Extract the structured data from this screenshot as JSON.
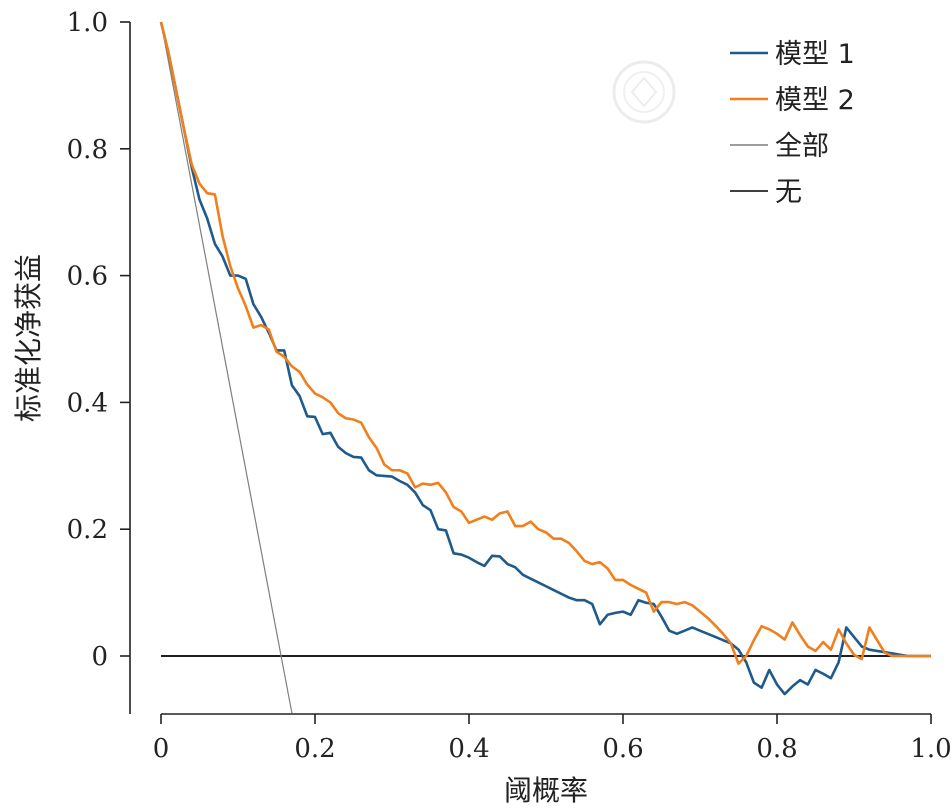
{
  "chart_data": {
    "type": "line",
    "xlabel": "阈概率",
    "ylabel": "标准化净获益",
    "xlim": [
      0,
      1.0
    ],
    "ylim": [
      -0.09,
      1.0
    ],
    "x_ticks": [
      "0",
      "0.2",
      "0.4",
      "0.6",
      "0.8",
      "1.0"
    ],
    "x_tick_values": [
      0,
      0.2,
      0.4,
      0.6,
      0.8,
      1.0
    ],
    "y_ticks": [
      "0",
      "0.2",
      "0.4",
      "0.6",
      "0.8",
      "1.0"
    ],
    "y_tick_values": [
      0,
      0.2,
      0.4,
      0.6,
      0.8,
      1.0
    ],
    "grid": false,
    "legend_position": "top-right",
    "series": [
      {
        "name": "模型 1",
        "color": "#1f5a8c",
        "x": [
          0,
          0.01,
          0.02,
          0.03,
          0.04,
          0.05,
          0.06,
          0.07,
          0.08,
          0.09,
          0.1,
          0.11,
          0.12,
          0.13,
          0.14,
          0.15,
          0.16,
          0.17,
          0.18,
          0.19,
          0.2,
          0.21,
          0.22,
          0.23,
          0.24,
          0.25,
          0.26,
          0.27,
          0.28,
          0.29,
          0.3,
          0.31,
          0.32,
          0.33,
          0.34,
          0.35,
          0.36,
          0.37,
          0.38,
          0.39,
          0.4,
          0.41,
          0.42,
          0.43,
          0.44,
          0.45,
          0.46,
          0.47,
          0.48,
          0.49,
          0.5,
          0.51,
          0.52,
          0.53,
          0.54,
          0.55,
          0.56,
          0.57,
          0.58,
          0.59,
          0.6,
          0.61,
          0.62,
          0.63,
          0.64,
          0.65,
          0.66,
          0.67,
          0.68,
          0.69,
          0.7,
          0.71,
          0.72,
          0.73,
          0.74,
          0.75,
          0.76,
          0.77,
          0.78,
          0.79,
          0.8,
          0.81,
          0.82,
          0.83,
          0.84,
          0.85,
          0.86,
          0.87,
          0.88,
          0.89,
          0.9,
          0.91,
          0.92,
          0.93,
          0.94,
          0.95,
          0.96,
          0.97,
          0.98,
          0.99,
          1.0
        ],
        "y": [
          1.0,
          0.95,
          0.89,
          0.83,
          0.77,
          0.72,
          0.69,
          0.65,
          0.63,
          0.6,
          0.6,
          0.595,
          0.555,
          0.535,
          0.51,
          0.482,
          0.482,
          0.427,
          0.41,
          0.378,
          0.377,
          0.35,
          0.352,
          0.33,
          0.32,
          0.314,
          0.313,
          0.293,
          0.285,
          0.284,
          0.283,
          0.276,
          0.27,
          0.258,
          0.238,
          0.23,
          0.2,
          0.198,
          0.162,
          0.16,
          0.155,
          0.148,
          0.142,
          0.158,
          0.157,
          0.145,
          0.14,
          0.128,
          0.122,
          0.116,
          0.11,
          0.104,
          0.098,
          0.092,
          0.088,
          0.088,
          0.082,
          0.05,
          0.065,
          0.068,
          0.07,
          0.065,
          0.088,
          0.084,
          0.082,
          0.062,
          0.04,
          0.035,
          0.04,
          0.045,
          0.04,
          0.035,
          0.03,
          0.025,
          0.02,
          0.01,
          -0.01,
          -0.042,
          -0.05,
          -0.022,
          -0.045,
          -0.06,
          -0.048,
          -0.038,
          -0.045,
          -0.022,
          -0.028,
          -0.035,
          -0.01,
          0.045,
          0.03,
          0.015,
          0.01,
          0.008,
          0.006,
          0.004,
          0.002,
          0,
          0,
          0,
          0
        ]
      },
      {
        "name": "模型 2",
        "color": "#f07f1c",
        "x": [
          0,
          0.01,
          0.02,
          0.03,
          0.04,
          0.05,
          0.06,
          0.07,
          0.08,
          0.09,
          0.1,
          0.11,
          0.12,
          0.13,
          0.14,
          0.15,
          0.16,
          0.17,
          0.18,
          0.19,
          0.2,
          0.21,
          0.22,
          0.23,
          0.24,
          0.25,
          0.26,
          0.27,
          0.28,
          0.29,
          0.3,
          0.31,
          0.32,
          0.33,
          0.34,
          0.35,
          0.36,
          0.37,
          0.38,
          0.39,
          0.4,
          0.41,
          0.42,
          0.43,
          0.44,
          0.45,
          0.46,
          0.47,
          0.48,
          0.49,
          0.5,
          0.51,
          0.52,
          0.53,
          0.54,
          0.55,
          0.56,
          0.57,
          0.58,
          0.59,
          0.6,
          0.61,
          0.62,
          0.63,
          0.64,
          0.65,
          0.66,
          0.67,
          0.68,
          0.69,
          0.7,
          0.71,
          0.72,
          0.73,
          0.74,
          0.75,
          0.76,
          0.77,
          0.78,
          0.79,
          0.8,
          0.81,
          0.82,
          0.83,
          0.84,
          0.85,
          0.86,
          0.87,
          0.88,
          0.89,
          0.9,
          0.91,
          0.92,
          0.93,
          0.94,
          0.95,
          0.96,
          0.97,
          0.98,
          0.99,
          1.0
        ],
        "y": [
          1.0,
          0.95,
          0.89,
          0.83,
          0.775,
          0.745,
          0.73,
          0.728,
          0.662,
          0.615,
          0.58,
          0.552,
          0.518,
          0.522,
          0.515,
          0.48,
          0.472,
          0.457,
          0.448,
          0.428,
          0.414,
          0.408,
          0.4,
          0.383,
          0.375,
          0.373,
          0.368,
          0.345,
          0.328,
          0.302,
          0.293,
          0.293,
          0.288,
          0.266,
          0.272,
          0.27,
          0.273,
          0.258,
          0.235,
          0.228,
          0.21,
          0.215,
          0.22,
          0.215,
          0.225,
          0.228,
          0.205,
          0.205,
          0.212,
          0.2,
          0.195,
          0.185,
          0.185,
          0.178,
          0.165,
          0.15,
          0.145,
          0.148,
          0.138,
          0.12,
          0.12,
          0.112,
          0.106,
          0.1,
          0.07,
          0.085,
          0.085,
          0.082,
          0.085,
          0.08,
          0.07,
          0.06,
          0.048,
          0.035,
          0.02,
          -0.012,
          0.0,
          0.025,
          0.047,
          0.042,
          0.035,
          0.026,
          0.053,
          0.033,
          0.015,
          0.008,
          0.022,
          0.01,
          0.042,
          0.02,
          0.002,
          -0.005,
          0.045,
          0.025,
          0.005,
          0.0,
          0,
          0,
          0,
          0,
          0
        ]
      },
      {
        "name": "全部",
        "color": "#7f7f7f",
        "x": [
          0,
          0.17
        ],
        "y": [
          1.0,
          -0.09
        ]
      },
      {
        "name": "无",
        "color": "#000000",
        "x": [
          0,
          1.0
        ],
        "y": [
          0,
          0
        ]
      }
    ]
  },
  "legend": {
    "items": [
      {
        "label": "模型 1",
        "color": "#1f5a8c"
      },
      {
        "label": "模型 2",
        "color": "#f07f1c"
      },
      {
        "label": "全部",
        "color": "#7f7f7f"
      },
      {
        "label": "无",
        "color": "#000000"
      }
    ]
  }
}
